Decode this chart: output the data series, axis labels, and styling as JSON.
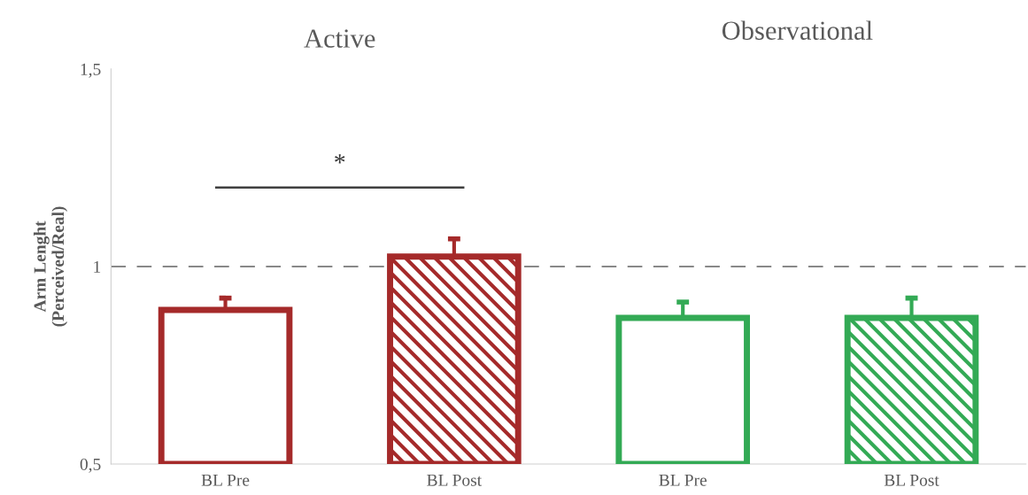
{
  "chart_data": {
    "type": "bar",
    "categories": [
      "BL Pre",
      "BL Post",
      "BL Pre",
      "BL Post"
    ],
    "values": [
      0.89,
      1.025,
      0.87,
      0.87
    ],
    "colors": [
      "#a52a2a",
      "#a52a2a",
      "#33aa55",
      "#33aa55"
    ],
    "errors": [
      [
        0.89,
        0.92
      ],
      [
        1.025,
        1.07
      ],
      [
        0.87,
        0.91
      ],
      [
        0.87,
        0.92
      ]
    ],
    "ylabel": "Arm Lenght\n(Perceived/Real)",
    "ylim": [
      0.5,
      1.5
    ],
    "yticks": [
      {
        "value": 0.5,
        "label": "0,5"
      },
      {
        "value": 1,
        "label": "1"
      },
      {
        "value": 1.5,
        "label": "1,5"
      }
    ],
    "ref_lines": [
      {
        "axis": "y",
        "value": 1,
        "color": "#888888",
        "line_style": "dashed"
      }
    ],
    "annotations": [
      "Active",
      "Observational",
      "*"
    ],
    "grid": false
  }
}
